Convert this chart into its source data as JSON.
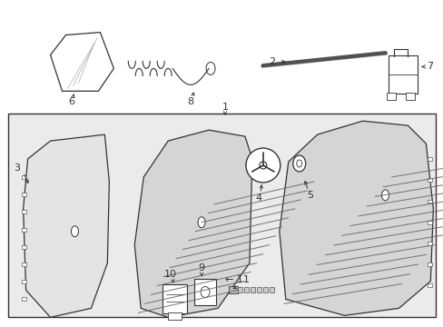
{
  "bg_color": "#ffffff",
  "box_bg": "#ebebeb",
  "line_color": "#333333",
  "fig_width": 4.89,
  "fig_height": 3.6,
  "dpi": 100
}
